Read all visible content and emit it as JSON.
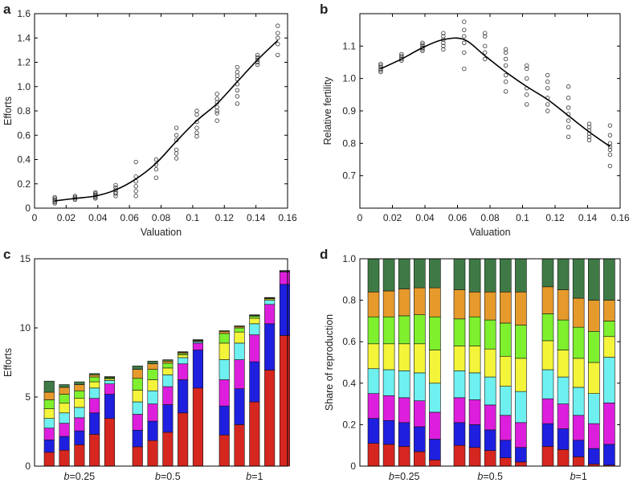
{
  "chart_data": [
    {
      "panel": "a",
      "type": "scatter",
      "xlabel": "Valuation",
      "ylabel": "Efforts",
      "xlim": [
        0,
        0.16
      ],
      "ylim": [
        0,
        1.6
      ],
      "xticks": [
        "0",
        "0.02",
        "0.04",
        "0.06",
        "0.08",
        "0.1",
        "0.12",
        "0.14",
        "0.16"
      ],
      "yticks": [
        "0",
        "0.2",
        "0.4",
        "0.6",
        "0.8",
        "1.0",
        "1.2",
        "1.4",
        "1.6"
      ],
      "line": {
        "x": [
          0.0128,
          0.0256,
          0.0385,
          0.0513,
          0.0641,
          0.0769,
          0.0897,
          0.1026,
          0.1154,
          0.1282,
          0.141,
          0.1538
        ],
        "y": [
          0.06,
          0.08,
          0.1,
          0.15,
          0.24,
          0.37,
          0.55,
          0.72,
          0.86,
          1.04,
          1.22,
          1.38
        ]
      },
      "points": [
        {
          "x": 0.0128,
          "y": [
            0.04,
            0.05,
            0.06,
            0.07,
            0.08,
            0.09
          ]
        },
        {
          "x": 0.0256,
          "y": [
            0.07,
            0.08,
            0.09,
            0.1
          ]
        },
        {
          "x": 0.0385,
          "y": [
            0.08,
            0.09,
            0.1,
            0.11,
            0.12,
            0.13
          ]
        },
        {
          "x": 0.0513,
          "y": [
            0.1,
            0.12,
            0.13,
            0.15,
            0.17,
            0.19
          ]
        },
        {
          "x": 0.0641,
          "y": [
            0.1,
            0.14,
            0.18,
            0.22,
            0.26,
            0.38
          ]
        },
        {
          "x": 0.0769,
          "y": [
            0.25,
            0.32,
            0.36,
            0.4
          ]
        },
        {
          "x": 0.0897,
          "y": [
            0.41,
            0.45,
            0.48,
            0.56,
            0.6,
            0.66
          ]
        },
        {
          "x": 0.1026,
          "y": [
            0.59,
            0.62,
            0.66,
            0.71,
            0.77,
            0.8
          ]
        },
        {
          "x": 0.1154,
          "y": [
            0.72,
            0.78,
            0.8,
            0.83,
            0.87,
            0.9,
            0.94
          ]
        },
        {
          "x": 0.1282,
          "y": [
            0.86,
            0.92,
            0.97,
            1.02,
            1.06,
            1.09,
            1.12,
            1.16
          ]
        },
        {
          "x": 0.141,
          "y": [
            1.18,
            1.2,
            1.22,
            1.24,
            1.26
          ]
        },
        {
          "x": 0.1538,
          "y": [
            1.26,
            1.35,
            1.4,
            1.44,
            1.5
          ]
        }
      ]
    },
    {
      "panel": "b",
      "type": "scatter",
      "xlabel": "Valuation",
      "ylabel": "Relative fertility",
      "xlim": [
        0,
        0.16
      ],
      "ylim": [
        0.6,
        1.2
      ],
      "xticks": [
        "0",
        "0.02",
        "0.04",
        "0.06",
        "0.08",
        "0.1",
        "0.12",
        "0.14",
        "0.16"
      ],
      "yticks": [
        "0.7",
        "0.8",
        "0.9",
        "1.0",
        "1.1"
      ],
      "line": {
        "x": [
          0.0128,
          0.0256,
          0.0385,
          0.0513,
          0.0641,
          0.0769,
          0.0897,
          0.1026,
          0.1154,
          0.1282,
          0.141,
          0.1538
        ],
        "y": [
          1.03,
          1.06,
          1.095,
          1.12,
          1.12,
          1.07,
          1.02,
          0.975,
          0.935,
          0.885,
          0.835,
          0.79
        ]
      },
      "points": [
        {
          "x": 0.0128,
          "y": [
            1.02,
            1.025,
            1.03,
            1.035,
            1.04,
            1.045
          ]
        },
        {
          "x": 0.0256,
          "y": [
            1.055,
            1.06,
            1.065,
            1.07,
            1.075
          ]
        },
        {
          "x": 0.0385,
          "y": [
            1.085,
            1.09,
            1.095,
            1.1,
            1.105,
            1.11
          ]
        },
        {
          "x": 0.0513,
          "y": [
            1.09,
            1.1,
            1.11,
            1.12,
            1.13,
            1.14
          ]
        },
        {
          "x": 0.0641,
          "y": [
            1.03,
            1.08,
            1.11,
            1.13,
            1.15,
            1.175
          ]
        },
        {
          "x": 0.0769,
          "y": [
            1.06,
            1.08,
            1.1,
            1.13,
            1.14
          ]
        },
        {
          "x": 0.0897,
          "y": [
            0.96,
            0.99,
            1.01,
            1.04,
            1.06,
            1.08,
            1.09
          ]
        },
        {
          "x": 0.1026,
          "y": [
            0.92,
            0.95,
            0.97,
            1.0,
            1.03,
            1.04
          ]
        },
        {
          "x": 0.1154,
          "y": [
            0.9,
            0.92,
            0.94,
            0.97,
            0.99,
            1.01
          ]
        },
        {
          "x": 0.1282,
          "y": [
            0.82,
            0.85,
            0.87,
            0.89,
            0.91,
            0.94,
            0.975
          ]
        },
        {
          "x": 0.141,
          "y": [
            0.81,
            0.82,
            0.83,
            0.84,
            0.85,
            0.86
          ]
        },
        {
          "x": 0.1538,
          "y": [
            0.73,
            0.765,
            0.78,
            0.79,
            0.8,
            0.825,
            0.855
          ]
        }
      ]
    },
    {
      "panel": "c",
      "type": "bar",
      "stacked": true,
      "ylabel": "Efforts",
      "ylim": [
        0,
        15
      ],
      "yticks": [
        "0",
        "5",
        "10",
        "15"
      ],
      "groups": [
        {
          "label_italic": "b",
          "label_rest": "=0.25"
        },
        {
          "label_italic": "b",
          "label_rest": "=0.5"
        },
        {
          "label_italic": "b",
          "label_rest": "=1"
        }
      ],
      "colors": [
        "#d62620",
        "#1f1fe0",
        "#dd1fdd",
        "#6ef0f0",
        "#f4f43a",
        "#7ef02e",
        "#e69a2c",
        "#3f7a46"
      ],
      "bars": [
        [
          [
            1.0,
            0.9,
            0.85,
            0.7,
            0.7,
            0.65,
            0.55,
            0.8
          ],
          [
            1.15,
            1.0,
            0.95,
            0.75,
            0.7,
            0.65,
            0.5,
            0.2
          ],
          [
            1.55,
            1.0,
            0.95,
            0.75,
            0.65,
            0.55,
            0.45,
            0.2
          ],
          [
            2.3,
            1.55,
            1.05,
            0.75,
            0.45,
            0.35,
            0.15,
            0.1
          ],
          [
            3.45,
            1.75,
            0.75,
            0.25,
            0.1,
            0.08,
            0.05,
            0.05
          ]
        ],
        [
          [
            1.4,
            1.2,
            1.15,
            0.9,
            0.85,
            0.85,
            0.65,
            0.25
          ],
          [
            1.85,
            1.4,
            1.25,
            0.95,
            0.8,
            0.75,
            0.4,
            0.2
          ],
          [
            2.45,
            2.0,
            1.3,
            0.85,
            0.5,
            0.35,
            0.15,
            0.1
          ],
          [
            3.85,
            2.4,
            1.15,
            0.45,
            0.2,
            0.1,
            0.08,
            0.05
          ],
          [
            5.65,
            2.75,
            0.5,
            0.1,
            0.05,
            0.05,
            0.03,
            0.02
          ]
        ],
        [
          [
            2.25,
            2.1,
            1.9,
            1.45,
            1.2,
            0.7,
            0.15,
            0.05
          ],
          [
            3.0,
            2.6,
            2.1,
            1.2,
            0.8,
            0.3,
            0.1,
            0.05
          ],
          [
            4.65,
            2.9,
            1.95,
            0.8,
            0.4,
            0.15,
            0.05,
            0.05
          ],
          [
            6.95,
            3.35,
            1.4,
            0.3,
            0.1,
            0.05,
            0.03,
            0.02
          ],
          [
            9.45,
            3.7,
            0.9,
            0.05,
            0.02,
            0.01,
            0.01,
            0.01
          ]
        ]
      ]
    },
    {
      "panel": "d",
      "type": "bar",
      "stacked": true,
      "ylabel": "Share of reproduction",
      "ylim": [
        0,
        1.0
      ],
      "yticks": [
        "0",
        "0.2",
        "0.4",
        "0.6",
        "0.8",
        "1.0"
      ],
      "groups": [
        {
          "label_italic": "b",
          "label_rest": "=0.25"
        },
        {
          "label_italic": "b",
          "label_rest": "=0.5"
        },
        {
          "label_italic": "b",
          "label_rest": "=1"
        }
      ],
      "colors": [
        "#d62620",
        "#1f1fe0",
        "#dd1fdd",
        "#6ef0f0",
        "#f4f43a",
        "#7ef02e",
        "#e69a2c",
        "#3f7a46"
      ],
      "bars": [
        [
          [
            0.11,
            0.12,
            0.12,
            0.12,
            0.12,
            0.13,
            0.12,
            0.16
          ],
          [
            0.105,
            0.115,
            0.12,
            0.125,
            0.125,
            0.13,
            0.125,
            0.155
          ],
          [
            0.095,
            0.115,
            0.12,
            0.13,
            0.13,
            0.135,
            0.13,
            0.145
          ],
          [
            0.07,
            0.12,
            0.125,
            0.135,
            0.14,
            0.14,
            0.13,
            0.14
          ],
          [
            0.03,
            0.1,
            0.13,
            0.14,
            0.16,
            0.16,
            0.14,
            0.14
          ]
        ],
        [
          [
            0.1,
            0.11,
            0.12,
            0.13,
            0.12,
            0.13,
            0.14,
            0.15
          ],
          [
            0.09,
            0.11,
            0.12,
            0.13,
            0.13,
            0.14,
            0.12,
            0.16
          ],
          [
            0.075,
            0.1,
            0.12,
            0.135,
            0.135,
            0.14,
            0.135,
            0.16
          ],
          [
            0.04,
            0.085,
            0.12,
            0.14,
            0.145,
            0.16,
            0.15,
            0.16
          ],
          [
            0.02,
            0.07,
            0.12,
            0.15,
            0.16,
            0.16,
            0.16,
            0.16
          ]
        ],
        [
          [
            0.095,
            0.11,
            0.12,
            0.14,
            0.14,
            0.13,
            0.13,
            0.135
          ],
          [
            0.08,
            0.1,
            0.12,
            0.13,
            0.13,
            0.145,
            0.145,
            0.15
          ],
          [
            0.045,
            0.08,
            0.12,
            0.135,
            0.14,
            0.15,
            0.14,
            0.19
          ],
          [
            0.01,
            0.075,
            0.12,
            0.145,
            0.15,
            0.15,
            0.15,
            0.2
          ],
          [
            0.005,
            0.1,
            0.2,
            0.22,
            0.1,
            0.075,
            0.1,
            0.2
          ]
        ]
      ]
    }
  ]
}
